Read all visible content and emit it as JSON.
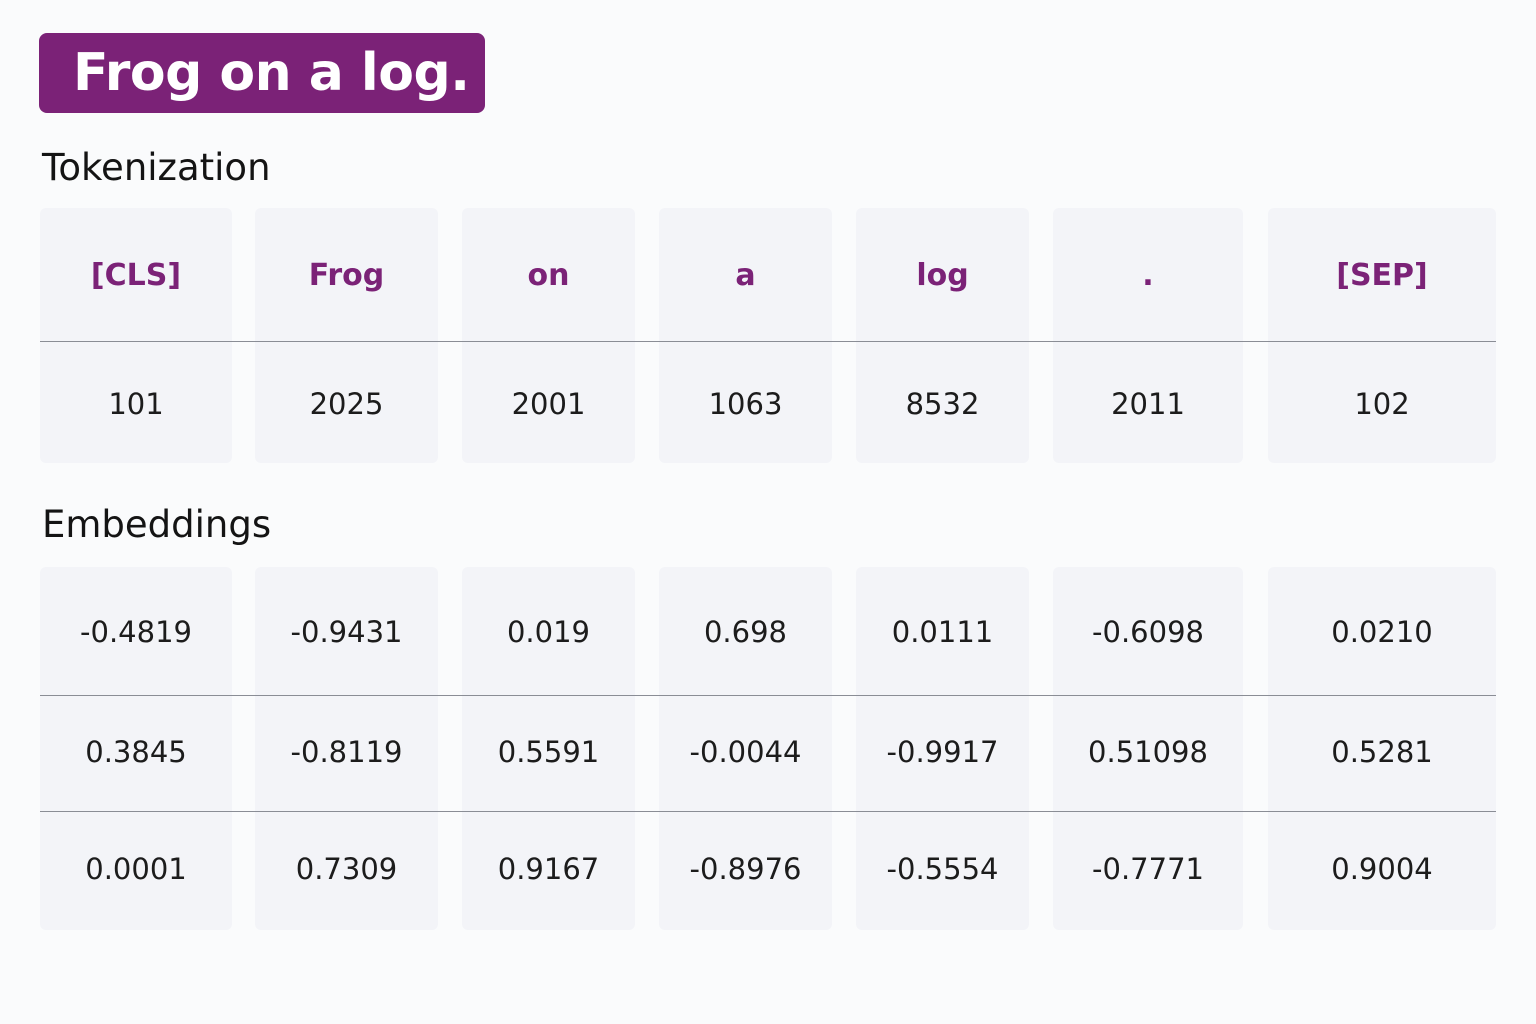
{
  "title": "Frog on a log.",
  "tokenization": {
    "heading": "Tokenization",
    "tokens": [
      "[CLS]",
      "Frog",
      "on",
      "a",
      "log",
      ".",
      "[SEP]"
    ],
    "ids": [
      "101",
      "2025",
      "2001",
      "1063",
      "8532",
      "2011",
      "102"
    ]
  },
  "embeddings": {
    "heading": "Embeddings",
    "rows": [
      [
        "-0.4819",
        "-0.9431",
        "0.019",
        "0.698",
        "0.0111",
        "-0.6098",
        "0.0210"
      ],
      [
        "0.3845",
        "-0.8119",
        "0.5591",
        "-0.0044",
        "-0.9917",
        "0.51098",
        "0.5281"
      ],
      [
        "0.0001",
        "0.7309",
        "0.9167",
        "-0.8976",
        "-0.5554",
        "-0.7771",
        "0.9004"
      ]
    ]
  },
  "colors": {
    "accent": "#7b2277",
    "cell_background": "#f3f4f8",
    "page_background": "#fafbfc"
  }
}
